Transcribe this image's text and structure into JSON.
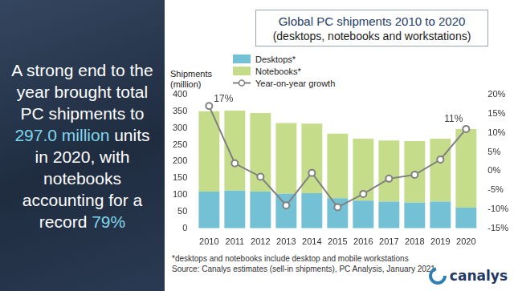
{
  "panel": {
    "headline": [
      "A strong end to the year brought total PC shipments to ",
      "297.0 million",
      " units in 2020, with notebooks accounting for a record ",
      "79%"
    ]
  },
  "chart_data": {
    "type": "bar",
    "title": "Global PC shipments 2010 to 2020",
    "subtitle": "(desktops, notebooks and workstations)",
    "ylabel": "Shipments\n(million)",
    "categories": [
      "2010",
      "2011",
      "2012",
      "2013",
      "2014",
      "2015",
      "2016",
      "2017",
      "2018",
      "2019",
      "2020"
    ],
    "series": [
      {
        "name": "Desktops*",
        "color": "#74c0d4",
        "values": [
          110,
          113,
          110,
          103,
          105,
          90,
          83,
          80,
          77,
          80,
          62
        ]
      },
      {
        "name": "Notebooks*",
        "color": "#c5dc8a",
        "values": [
          240,
          239,
          235,
          212,
          208,
          193,
          185,
          183,
          184,
          188,
          235
        ]
      },
      {
        "name": "Year-on-year growth",
        "type": "line",
        "axis": "y2",
        "color": "#808080",
        "marker": "circle",
        "values": [
          17,
          2,
          -1.5,
          -9,
          -0.5,
          -9.5,
          -6,
          -2,
          -1,
          3,
          11
        ],
        "value_labels": [
          "17%",
          null,
          null,
          null,
          null,
          null,
          null,
          null,
          null,
          null,
          "11%"
        ]
      }
    ],
    "stacked": true,
    "data_labels": true,
    "grid": false,
    "legend": "top-left",
    "ylim": [
      0,
      400
    ],
    "yticks": [
      0,
      50,
      100,
      150,
      200,
      250,
      300,
      350,
      400
    ],
    "y2lim": [
      -15,
      20
    ],
    "y2ticks": [
      {
        "value": -15,
        "label": "-15%"
      },
      {
        "value": -10,
        "label": "-10%"
      },
      {
        "value": -5,
        "label": "-5%"
      },
      {
        "value": 0,
        "label": "0%"
      },
      {
        "value": 5,
        "label": "5%"
      },
      {
        "value": 10,
        "label": "10%"
      },
      {
        "value": 15,
        "label": "15%"
      },
      {
        "value": 20,
        "label": "20%"
      }
    ]
  },
  "notes": [
    "*desktops and notebooks include desktop and mobile workstations",
    "Source: Canalys estimates (sell-in shipments), PC Analysis, January 2021"
  ],
  "logo": "canalys"
}
